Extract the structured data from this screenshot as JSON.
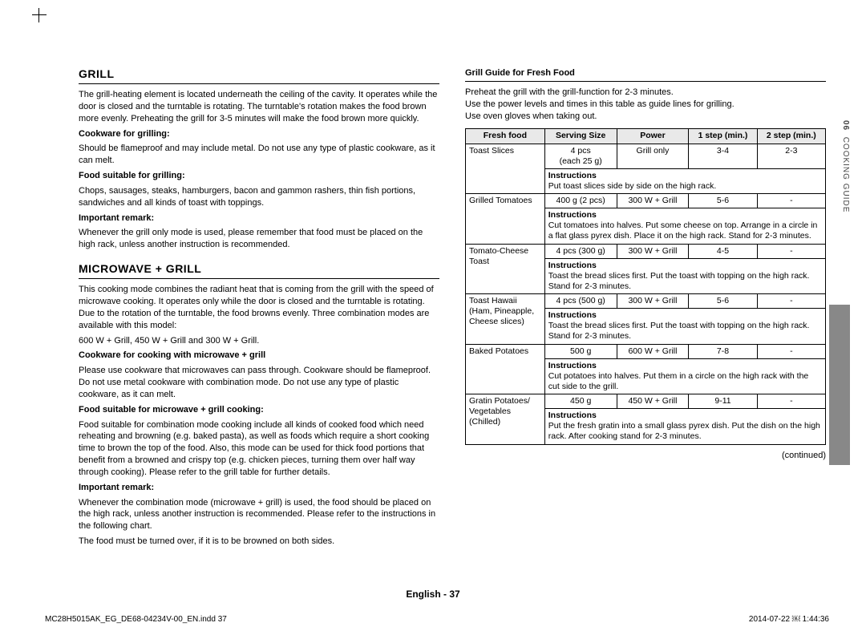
{
  "left": {
    "h_grill": "GRILL",
    "grill_intro": "The grill-heating element is located underneath the ceiling of the cavity. It operates while the door is closed and the turntable is rotating. The turntable's rotation makes the food brown more evenly. Preheating the grill for 3-5 minutes will make the food brown more quickly.",
    "cookware_grill_h": "Cookware for grilling:",
    "cookware_grill_p": "Should be flameproof and may include metal. Do not use any type of plastic cookware, as it can melt.",
    "food_grill_h": "Food suitable for grilling:",
    "food_grill_p": "Chops, sausages, steaks, hamburgers, bacon and gammon rashers, thin fish portions, sandwiches and all kinds of toast with toppings.",
    "remark1_h": "Important remark:",
    "remark1_p": "Whenever the grill only mode is used, please remember that food must be placed on the high rack, unless another instruction is recommended.",
    "h_mwgrill": "MICROWAVE + GRILL",
    "mwgrill_intro": "This cooking mode combines the radiant heat that is coming from the grill with the speed of microwave cooking. It operates only while the door is closed and the turntable is rotating. Due to the rotation of the turntable, the food browns evenly. Three combination modes are available with this model:",
    "mwgrill_modes": "600 W + Grill, 450 W + Grill and 300 W + Grill.",
    "cookware_mw_h": "Cookware for cooking with microwave + grill",
    "cookware_mw_p": "Please use cookware that microwaves can pass through. Cookware should be flameproof. Do not use metal cookware with combination mode. Do not use any type of plastic cookware, as it can melt.",
    "food_mw_h": "Food suitable for microwave + grill cooking:",
    "food_mw_p": "Food suitable for combination mode cooking include all kinds of cooked food which need reheating and browning (e.g. baked pasta), as well as foods which require a short cooking time to brown the top of the food. Also, this mode can be used for thick food portions that benefit from a browned and crispy top (e.g. chicken pieces, turning them over half way through cooking). Please refer to the grill table for further details.",
    "remark2_h": "Important remark:",
    "remark2_p1": "Whenever the combination mode (microwave + grill) is used, the food should be placed on the high rack, unless another instruction is recommended. Please refer to the instructions in the following chart.",
    "remark2_p2": "The food must be turned over, if it is to be browned on both sides."
  },
  "right": {
    "table_title": "Grill Guide for Fresh Food",
    "preheat": "Preheat the grill with the grill-function for 2-3 minutes.\nUse the power levels and times in this table as guide lines for grilling.\nUse oven gloves when taking out.",
    "headers": [
      "Fresh food",
      "Serving Size",
      "Power",
      "1 step (min.)",
      "2 step (min.)"
    ],
    "instr_label": "Instructions",
    "rows": [
      {
        "food": "Toast Slices",
        "size": "4 pcs\n(each 25 g)",
        "power": "Grill only",
        "s1": "3-4",
        "s2": "2-3",
        "instr": "Put toast slices side by side on the high rack."
      },
      {
        "food": "Grilled Tomatoes",
        "size": "400 g (2 pcs)",
        "power": "300 W + Grill",
        "s1": "5-6",
        "s2": "-",
        "instr": "Cut tomatoes into halves. Put some cheese on top. Arrange in a circle in a flat glass pyrex dish. Place it on the high rack. Stand for 2-3 minutes."
      },
      {
        "food": "Tomato-Cheese Toast",
        "size": "4 pcs (300 g)",
        "power": "300 W + Grill",
        "s1": "4-5",
        "s2": "-",
        "instr": "Toast the bread slices first. Put the toast with topping on the high rack. Stand for 2-3 minutes."
      },
      {
        "food": "Toast Hawaii (Ham, Pineapple, Cheese slices)",
        "size": "4 pcs (500 g)",
        "power": "300 W + Grill",
        "s1": "5-6",
        "s2": "-",
        "instr": "Toast the bread slices first. Put the toast with topping on the high rack. Stand for 2-3 minutes."
      },
      {
        "food": "Baked Potatoes",
        "size": "500 g",
        "power": "600 W + Grill",
        "s1": "7-8",
        "s2": "-",
        "instr": "Cut potatoes into halves. Put them in a circle on the high rack with the cut side to the grill."
      },
      {
        "food": "Gratin Potatoes/ Vegetables (Chilled)",
        "size": "450 g",
        "power": "450 W + Grill",
        "s1": "9-11",
        "s2": "-",
        "instr": "Put the fresh gratin into a small glass pyrex dish. Put the dish on the high rack. After cooking stand for 2-3 minutes."
      }
    ],
    "continued": "(continued)"
  },
  "side": {
    "num": "06",
    "label": "COOKING GUIDE"
  },
  "footer": "English - 37",
  "print": {
    "file": "MC28H5015AK_EG_DE68-04234V-00_EN.indd   37",
    "time": "2014-07-22   ￼ 1:44:36"
  }
}
